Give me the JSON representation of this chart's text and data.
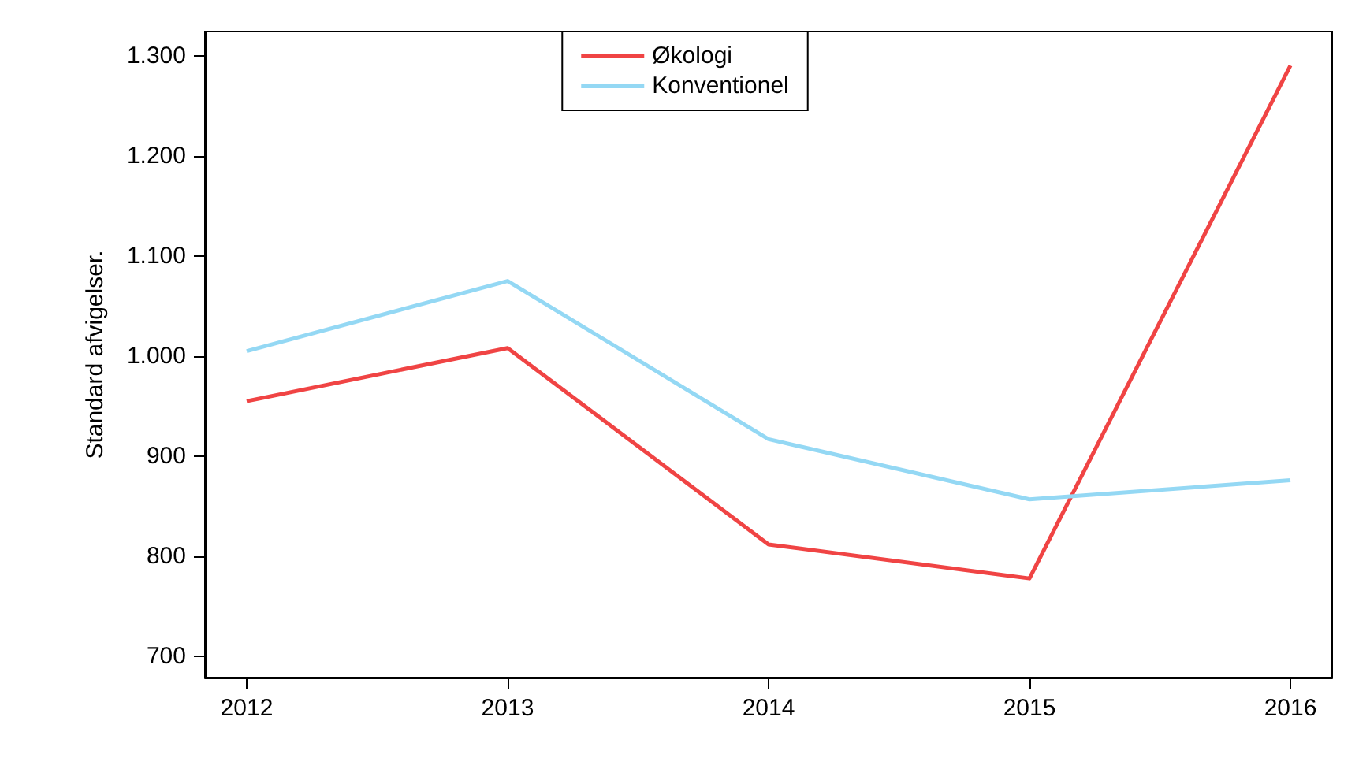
{
  "chart_data": {
    "type": "line",
    "ylabel": "Standard afvigelser.",
    "x": [
      2012,
      2013,
      2014,
      2015,
      2016
    ],
    "series": [
      {
        "name": "Økologi",
        "color": "#f04444",
        "values": [
          955,
          1008,
          812,
          778,
          1290
        ]
      },
      {
        "name": "Konventionel",
        "color": "#94d8f4",
        "values": [
          1005,
          1075,
          917,
          857,
          876
        ]
      }
    ],
    "xlim": [
      2011.84,
      2016.16
    ],
    "xticks": [
      2012,
      2013,
      2014,
      2015,
      2016
    ],
    "ylim": [
      679,
      1324
    ],
    "yticks": [
      {
        "value": 700,
        "label": "700"
      },
      {
        "value": 800,
        "label": "800"
      },
      {
        "value": 900,
        "label": "900"
      },
      {
        "value": 1000,
        "label": "1.000"
      },
      {
        "value": 1100,
        "label": "1.100"
      },
      {
        "value": 1200,
        "label": "1.200"
      },
      {
        "value": 1300,
        "label": "1.300"
      }
    ],
    "legend": "top",
    "grid": false,
    "marker": "none",
    "line_style": "solid"
  }
}
